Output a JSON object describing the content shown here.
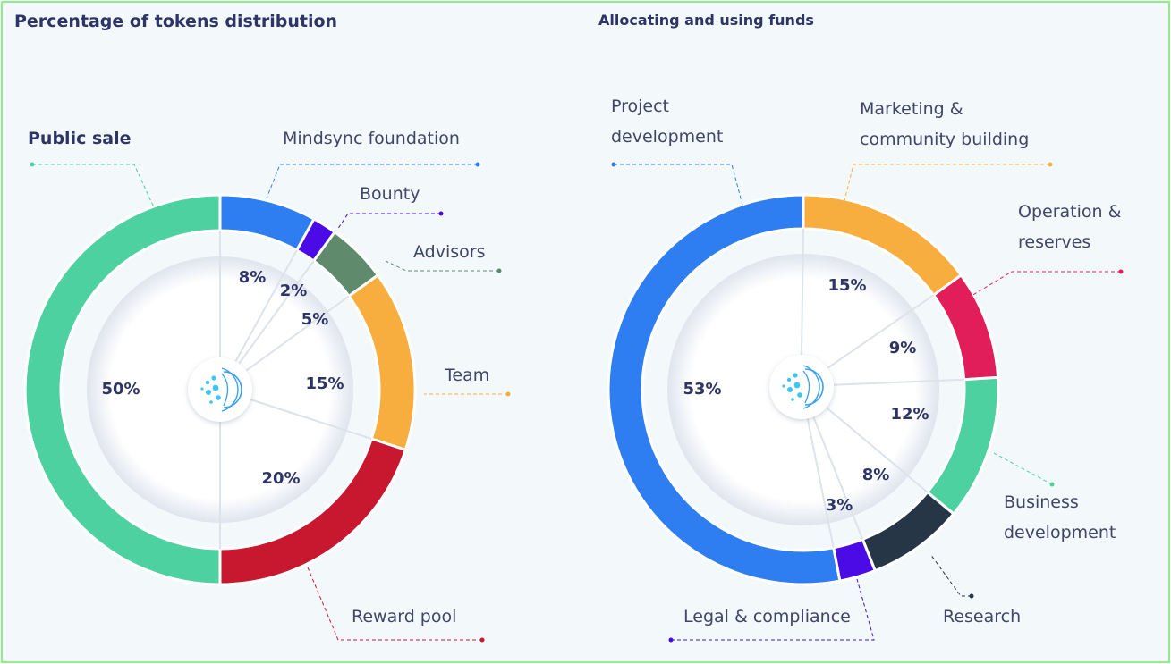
{
  "chart_data": [
    {
      "type": "pie",
      "title": "Percentage of tokens distribution",
      "slices": [
        {
          "label": "Mindsync foundation",
          "value": 8,
          "value_label": "8%",
          "color": "#2f7ef1"
        },
        {
          "label": "Bounty",
          "value": 2,
          "value_label": "2%",
          "color": "#4b0be6"
        },
        {
          "label": "Advisors",
          "value": 5,
          "value_label": "5%",
          "color": "#5f8a6c"
        },
        {
          "label": "Team",
          "value": 15,
          "value_label": "15%",
          "color": "#f7ae3e"
        },
        {
          "label": "Reward pool",
          "value": 20,
          "value_label": "20%",
          "color": "#c81830"
        },
        {
          "label": "Public sale",
          "value": 50,
          "value_label": "50%",
          "color": "#4ed1a0"
        }
      ]
    },
    {
      "type": "pie",
      "title": "Allocating and using funds",
      "slices": [
        {
          "label": "Marketing & community building",
          "value": 15,
          "value_label": "15%",
          "color": "#f7ae3e"
        },
        {
          "label": "Operation & reserves",
          "value": 9,
          "value_label": "9%",
          "color": "#e21e5a"
        },
        {
          "label": "Business development",
          "value": 12,
          "value_label": "12%",
          "color": "#4ed1a0"
        },
        {
          "label": "Research",
          "value": 8,
          "value_label": "8%",
          "color": "#263647"
        },
        {
          "label": "Legal & compliance",
          "value": 3,
          "value_label": "3%",
          "color": "#4b0be6"
        },
        {
          "label": "Project development",
          "value": 53,
          "value_label": "53%",
          "color": "#2f7ef1"
        }
      ]
    }
  ],
  "labels": {
    "left": {
      "public_sale": "Public sale",
      "mindsync": "Mindsync foundation",
      "bounty": "Bounty",
      "advisors": "Advisors",
      "team": "Team",
      "reward_pool": "Reward pool"
    },
    "right": {
      "project_l1": "Project",
      "project_l2": "development",
      "marketing_l1": "Marketing &",
      "marketing_l2": "community building",
      "operation_l1": "Operation &",
      "operation_l2": "reserves",
      "business_l1": "Business",
      "business_l2": "development",
      "research": "Research",
      "legal": "Legal & compliance"
    }
  },
  "logo_icon": "mindsync-logo-icon"
}
